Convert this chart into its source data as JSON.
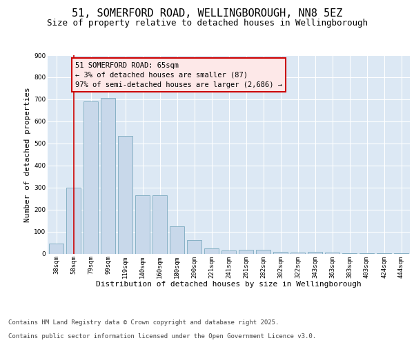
{
  "title_line1": "51, SOMERFORD ROAD, WELLINGBOROUGH, NN8 5EZ",
  "title_line2": "Size of property relative to detached houses in Wellingborough",
  "xlabel": "Distribution of detached houses by size in Wellingborough",
  "ylabel": "Number of detached properties",
  "categories": [
    "38sqm",
    "58sqm",
    "79sqm",
    "99sqm",
    "119sqm",
    "140sqm",
    "160sqm",
    "180sqm",
    "200sqm",
    "221sqm",
    "241sqm",
    "261sqm",
    "282sqm",
    "302sqm",
    "322sqm",
    "343sqm",
    "363sqm",
    "383sqm",
    "403sqm",
    "424sqm",
    "444sqm"
  ],
  "values": [
    45,
    300,
    690,
    705,
    535,
    265,
    265,
    125,
    60,
    25,
    15,
    18,
    18,
    8,
    5,
    8,
    5,
    3,
    2,
    2,
    2
  ],
  "bar_color": "#c8d8ea",
  "bar_edge_color": "#7baabf",
  "annotation_text": "51 SOMERFORD ROAD: 65sqm\n← 3% of detached houses are smaller (87)\n97% of semi-detached houses are larger (2,686) →",
  "vline_x_index": 1,
  "annotation_box_facecolor": "#fde8e8",
  "annotation_box_edge": "#cc0000",
  "vline_color": "#cc0000",
  "ylim": [
    0,
    900
  ],
  "yticks": [
    0,
    100,
    200,
    300,
    400,
    500,
    600,
    700,
    800,
    900
  ],
  "footer_line1": "Contains HM Land Registry data © Crown copyright and database right 2025.",
  "footer_line2": "Contains public sector information licensed under the Open Government Licence v3.0.",
  "bg_color": "#dce8f4",
  "fig_bg_color": "#ffffff",
  "title_fontsize": 11,
  "subtitle_fontsize": 9,
  "axis_label_fontsize": 8,
  "tick_fontsize": 6.5,
  "annotation_fontsize": 7.5,
  "footer_fontsize": 6.5
}
